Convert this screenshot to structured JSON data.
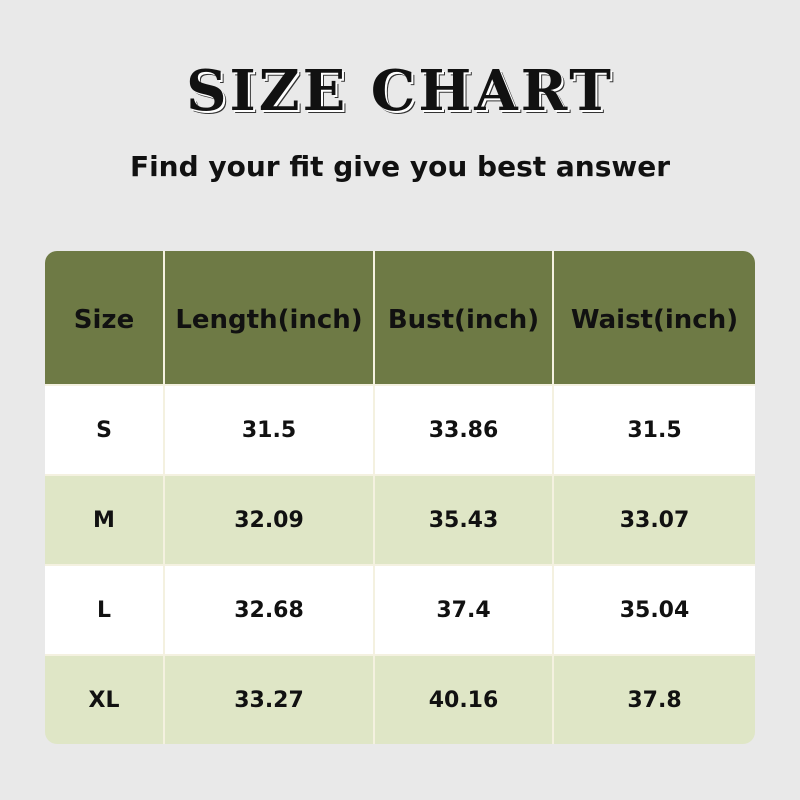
{
  "title": "SIZE CHART",
  "subtitle": "Find your fit give you best answer",
  "table": {
    "headers": [
      "Size",
      "Length(inch)",
      "Bust(inch)",
      "Waist(inch)"
    ],
    "rows": [
      [
        "S",
        "31.5",
        "33.86",
        "31.5"
      ],
      [
        "M",
        "32.09",
        "35.43",
        "33.07"
      ],
      [
        "L",
        "32.68",
        "37.4",
        "35.04"
      ],
      [
        "XL",
        "33.27",
        "40.16",
        "37.8"
      ]
    ]
  },
  "colors": {
    "header": "#6e7a45",
    "row_alt": "#dfe6c6",
    "row": "#ffffff",
    "background": "#e9e9e9"
  }
}
